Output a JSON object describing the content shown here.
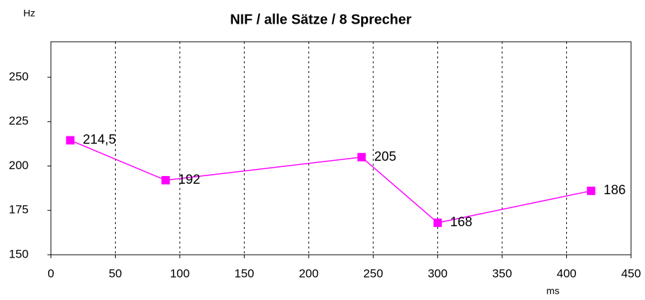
{
  "chart_data": {
    "type": "line",
    "title": "NIF / alle Sätze / 8 Sprecher",
    "y_label": "Hz",
    "x_label": "ms",
    "x": [
      15,
      89,
      241,
      300,
      419
    ],
    "series": [
      {
        "name": "NIF",
        "color": "#ff00ff",
        "values": [
          214.5,
          192,
          205,
          168,
          186
        ],
        "value_labels": [
          "214,5",
          "192",
          "205",
          "168",
          "186"
        ]
      }
    ],
    "xlim": [
      0,
      450
    ],
    "xticks": [
      0,
      50,
      100,
      150,
      200,
      250,
      300,
      350,
      400,
      450
    ],
    "ylim": [
      150,
      270
    ],
    "yticks": [
      150,
      175,
      200,
      225,
      250
    ],
    "grid": "x",
    "legend": false
  }
}
